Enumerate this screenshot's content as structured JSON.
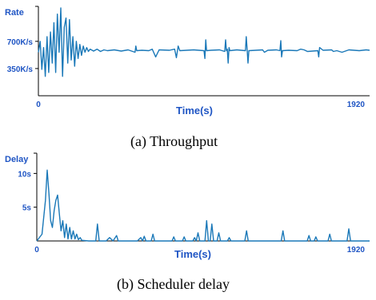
{
  "colors": {
    "series": "#1a78b8",
    "axis_text": "#1f55c4",
    "axis": "#000000"
  },
  "chart_data": [
    {
      "type": "line",
      "caption": "(a) Throughput",
      "ylabel": "Rate",
      "xlabel": "Time(s)",
      "xlim": [
        0,
        1920
      ],
      "ylim": [
        0,
        1150
      ],
      "x_ticks": [
        "0",
        "1920"
      ],
      "y_ticks": [
        {
          "value": 350,
          "label": "350K/s"
        },
        {
          "value": 700,
          "label": "700K/s"
        }
      ],
      "series": [
        {
          "values": [
            [
              0,
              560
            ],
            [
              10,
              700
            ],
            [
              20,
              340
            ],
            [
              30,
              620
            ],
            [
              40,
              250
            ],
            [
              50,
              760
            ],
            [
              60,
              300
            ],
            [
              70,
              820
            ],
            [
              80,
              420
            ],
            [
              90,
              940
            ],
            [
              100,
              300
            ],
            [
              110,
              1050
            ],
            [
              120,
              560
            ],
            [
              130,
              1130
            ],
            [
              140,
              250
            ],
            [
              150,
              880
            ],
            [
              160,
              1000
            ],
            [
              170,
              420
            ],
            [
              180,
              980
            ],
            [
              190,
              460
            ],
            [
              200,
              760
            ],
            [
              210,
              380
            ],
            [
              220,
              700
            ],
            [
              230,
              480
            ],
            [
              240,
              660
            ],
            [
              250,
              520
            ],
            [
              260,
              640
            ],
            [
              270,
              560
            ],
            [
              280,
              620
            ],
            [
              290,
              570
            ],
            [
              300,
              600
            ],
            [
              320,
              575
            ],
            [
              340,
              600
            ],
            [
              360,
              570
            ],
            [
              380,
              590
            ],
            [
              400,
              580
            ],
            [
              440,
              590
            ],
            [
              480,
              575
            ],
            [
              520,
              590
            ],
            [
              560,
              560
            ],
            [
              565,
              640
            ],
            [
              570,
              580
            ],
            [
              600,
              585
            ],
            [
              640,
              580
            ],
            [
              660,
              600
            ],
            [
              680,
              500
            ],
            [
              700,
              590
            ],
            [
              760,
              585
            ],
            [
              790,
              600
            ],
            [
              800,
              490
            ],
            [
              810,
              640
            ],
            [
              820,
              580
            ],
            [
              860,
              585
            ],
            [
              900,
              590
            ],
            [
              930,
              585
            ],
            [
              960,
              580
            ],
            [
              965,
              480
            ],
            [
              970,
              720
            ],
            [
              975,
              580
            ],
            [
              1000,
              585
            ],
            [
              1050,
              590
            ],
            [
              1080,
              570
            ],
            [
              1085,
              720
            ],
            [
              1090,
              580
            ],
            [
              1095,
              600
            ],
            [
              1100,
              420
            ],
            [
              1105,
              620
            ],
            [
              1110,
              580
            ],
            [
              1150,
              590
            ],
            [
              1200,
              580
            ],
            [
              1205,
              760
            ],
            [
              1210,
              600
            ],
            [
              1215,
              420
            ],
            [
              1220,
              580
            ],
            [
              1260,
              585
            ],
            [
              1300,
              590
            ],
            [
              1310,
              560
            ],
            [
              1330,
              585
            ],
            [
              1380,
              590
            ],
            [
              1400,
              580
            ],
            [
              1405,
              710
            ],
            [
              1410,
              500
            ],
            [
              1415,
              580
            ],
            [
              1450,
              585
            ],
            [
              1500,
              580
            ],
            [
              1520,
              600
            ],
            [
              1540,
              590
            ],
            [
              1560,
              570
            ],
            [
              1620,
              580
            ],
            [
              1625,
              500
            ],
            [
              1630,
              620
            ],
            [
              1650,
              585
            ],
            [
              1700,
              590
            ],
            [
              1710,
              570
            ],
            [
              1730,
              580
            ],
            [
              1760,
              560
            ],
            [
              1800,
              590
            ],
            [
              1860,
              580
            ],
            [
              1900,
              590
            ],
            [
              1920,
              585
            ]
          ]
        }
      ]
    },
    {
      "type": "line",
      "caption": "(b) Scheduler delay",
      "ylabel": "Delay",
      "xlabel": "Time(s)",
      "xlim": [
        0,
        1920
      ],
      "ylim": [
        0,
        13
      ],
      "x_ticks": [
        "0",
        "1920"
      ],
      "y_ticks": [
        {
          "value": 5,
          "label": "5s"
        },
        {
          "value": 10,
          "label": "10s"
        }
      ],
      "series": [
        {
          "values": [
            [
              0,
              0
            ],
            [
              30,
              1
            ],
            [
              50,
              6
            ],
            [
              60,
              10.5
            ],
            [
              70,
              7
            ],
            [
              80,
              3
            ],
            [
              90,
              2
            ],
            [
              100,
              4.5
            ],
            [
              110,
              6
            ],
            [
              120,
              6.8
            ],
            [
              130,
              4
            ],
            [
              140,
              1.5
            ],
            [
              150,
              3
            ],
            [
              160,
              0.5
            ],
            [
              170,
              2.5
            ],
            [
              180,
              0.3
            ],
            [
              190,
              2
            ],
            [
              200,
              0.3
            ],
            [
              210,
              1.5
            ],
            [
              220,
              0.3
            ],
            [
              230,
              1
            ],
            [
              240,
              0.2
            ],
            [
              250,
              0.5
            ],
            [
              260,
              0.1
            ],
            [
              300,
              0
            ],
            [
              340,
              0
            ],
            [
              350,
              2.5
            ],
            [
              360,
              0
            ],
            [
              400,
              0
            ],
            [
              420,
              0.5
            ],
            [
              440,
              0
            ],
            [
              460,
              0.8
            ],
            [
              470,
              0
            ],
            [
              580,
              0
            ],
            [
              600,
              0.5
            ],
            [
              610,
              0
            ],
            [
              620,
              0.7
            ],
            [
              630,
              0
            ],
            [
              660,
              0
            ],
            [
              670,
              1
            ],
            [
              680,
              0
            ],
            [
              780,
              0
            ],
            [
              790,
              0.6
            ],
            [
              800,
              0
            ],
            [
              840,
              0
            ],
            [
              850,
              0.6
            ],
            [
              860,
              0
            ],
            [
              900,
              0
            ],
            [
              910,
              0.5
            ],
            [
              920,
              0
            ],
            [
              930,
              1.2
            ],
            [
              940,
              0
            ],
            [
              970,
              0
            ],
            [
              980,
              3
            ],
            [
              990,
              0
            ],
            [
              1000,
              0
            ],
            [
              1010,
              2.5
            ],
            [
              1020,
              0
            ],
            [
              1040,
              0
            ],
            [
              1050,
              1.2
            ],
            [
              1060,
              0
            ],
            [
              1100,
              0
            ],
            [
              1110,
              0.5
            ],
            [
              1120,
              0
            ],
            [
              1200,
              0
            ],
            [
              1210,
              1.5
            ],
            [
              1220,
              0
            ],
            [
              1410,
              0
            ],
            [
              1420,
              1.5
            ],
            [
              1430,
              0
            ],
            [
              1560,
              0
            ],
            [
              1570,
              0.8
            ],
            [
              1580,
              0
            ],
            [
              1600,
              0
            ],
            [
              1610,
              0.6
            ],
            [
              1620,
              0
            ],
            [
              1680,
              0
            ],
            [
              1690,
              1
            ],
            [
              1700,
              0
            ],
            [
              1790,
              0
            ],
            [
              1800,
              1.8
            ],
            [
              1810,
              0
            ],
            [
              1920,
              0
            ]
          ]
        }
      ]
    }
  ]
}
